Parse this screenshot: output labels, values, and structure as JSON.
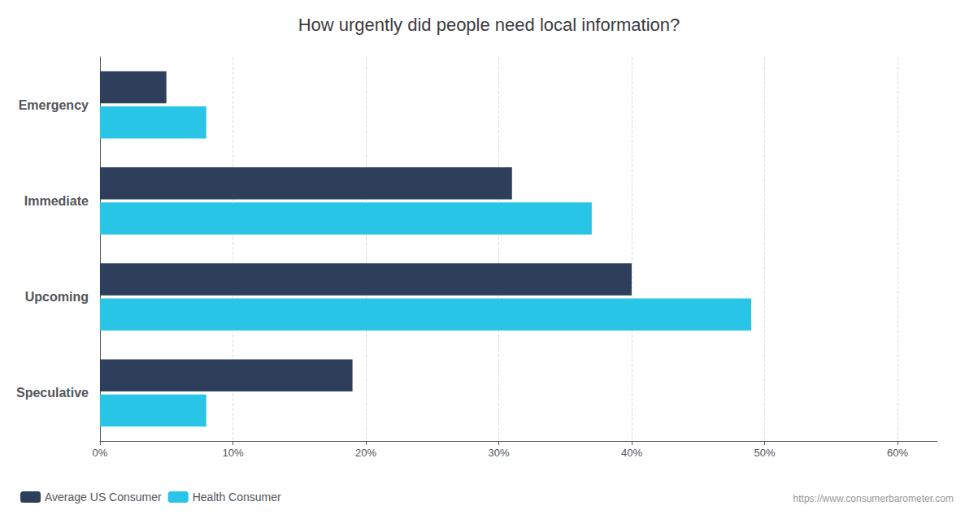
{
  "chart_data": {
    "type": "bar",
    "orientation": "horizontal",
    "title": "How urgently did people need local information?",
    "categories": [
      "Emergency",
      "Immediate",
      "Upcoming",
      "Speculative"
    ],
    "series": [
      {
        "name": "Average US Consumer",
        "color": "#2e3f5c",
        "values": [
          5,
          31,
          40,
          19
        ]
      },
      {
        "name": "Health Consumer",
        "color": "#29c5e6",
        "values": [
          8,
          37,
          49,
          8
        ]
      }
    ],
    "xlim": [
      0,
      63
    ],
    "xticks": [
      {
        "value": 0,
        "label": "0%"
      },
      {
        "value": 10,
        "label": "10%"
      },
      {
        "value": 20,
        "label": "20%"
      },
      {
        "value": 30,
        "label": "30%"
      },
      {
        "value": 40,
        "label": "40%"
      },
      {
        "value": 50,
        "label": "50%"
      },
      {
        "value": 60,
        "label": "60%"
      }
    ],
    "grid": true,
    "legend": "lower left",
    "annotations": [
      "https://www.consumerbarometer.com"
    ]
  }
}
